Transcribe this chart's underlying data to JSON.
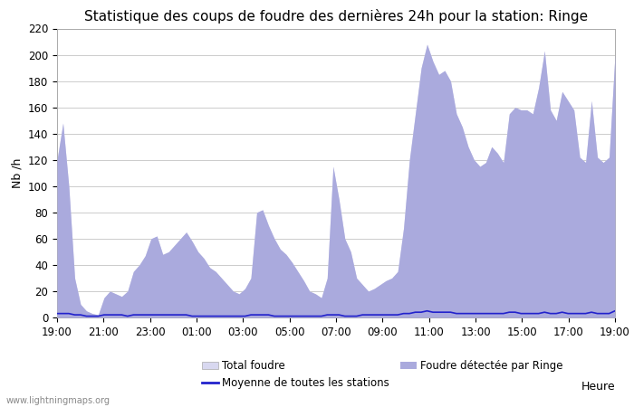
{
  "title": "Statistique des coups de foudre des dernières 24h pour la station: Ringe",
  "xlabel": "Heure",
  "ylabel": "Nb /h",
  "ylim": [
    0,
    220
  ],
  "yticks": [
    0,
    20,
    40,
    60,
    80,
    100,
    120,
    140,
    160,
    180,
    200,
    220
  ],
  "x_labels": [
    "19:00",
    "21:00",
    "23:00",
    "01:00",
    "03:00",
    "05:00",
    "07:00",
    "09:00",
    "11:00",
    "13:00",
    "15:00",
    "17:00",
    "19:00"
  ],
  "background_color": "#ffffff",
  "plot_bg_color": "#ffffff",
  "grid_color": "#cccccc",
  "watermark": "www.lightningmaps.org",
  "total_foudre_color": "#d8d8f0",
  "ringe_foudre_color": "#aaaadd",
  "moyenne_color": "#2222cc",
  "total_foudre": [
    120,
    148,
    100,
    30,
    10,
    5,
    3,
    2,
    15,
    20,
    18,
    16,
    20,
    35,
    40,
    47,
    60,
    62,
    48,
    50,
    55,
    60,
    65,
    58,
    50,
    45,
    38,
    35,
    30,
    25,
    20,
    18,
    22,
    30,
    80,
    82,
    70,
    60,
    52,
    48,
    42,
    35,
    28,
    20,
    18,
    15,
    30,
    115,
    90,
    60,
    50,
    30,
    25,
    20,
    22,
    25,
    28,
    30,
    35,
    68,
    120,
    155,
    190,
    208,
    195,
    185,
    188,
    180,
    155,
    145,
    130,
    120,
    115,
    118,
    130,
    125,
    118,
    155,
    160,
    158,
    158,
    155,
    175,
    203,
    158,
    150,
    172,
    165,
    158,
    122,
    118,
    165,
    122,
    118,
    122,
    200
  ],
  "ringe_foudre": [
    120,
    148,
    100,
    30,
    10,
    5,
    3,
    2,
    15,
    20,
    18,
    16,
    20,
    35,
    40,
    47,
    60,
    62,
    48,
    50,
    55,
    60,
    65,
    58,
    50,
    45,
    38,
    35,
    30,
    25,
    20,
    18,
    22,
    30,
    80,
    82,
    70,
    60,
    52,
    48,
    42,
    35,
    28,
    20,
    18,
    15,
    30,
    115,
    90,
    60,
    50,
    30,
    25,
    20,
    22,
    25,
    28,
    30,
    35,
    68,
    120,
    155,
    190,
    208,
    195,
    185,
    188,
    180,
    155,
    145,
    130,
    120,
    115,
    118,
    130,
    125,
    118,
    155,
    160,
    158,
    158,
    155,
    175,
    203,
    158,
    150,
    172,
    165,
    158,
    122,
    118,
    165,
    122,
    118,
    122,
    200
  ],
  "moyenne": [
    3,
    3,
    3,
    2,
    2,
    1,
    1,
    1,
    2,
    2,
    2,
    2,
    1,
    2,
    2,
    2,
    2,
    2,
    2,
    2,
    2,
    2,
    2,
    1,
    1,
    1,
    1,
    1,
    1,
    1,
    1,
    1,
    1,
    2,
    2,
    2,
    2,
    1,
    1,
    1,
    1,
    1,
    1,
    1,
    1,
    1,
    2,
    2,
    2,
    1,
    1,
    1,
    2,
    2,
    2,
    2,
    2,
    2,
    2,
    3,
    3,
    4,
    4,
    5,
    4,
    4,
    4,
    4,
    3,
    3,
    3,
    3,
    3,
    3,
    3,
    3,
    3,
    4,
    4,
    3,
    3,
    3,
    3,
    4,
    3,
    3,
    4,
    3,
    3,
    3,
    3,
    4,
    3,
    3,
    3,
    5
  ],
  "n_points": 96,
  "title_fontsize": 11,
  "tick_fontsize": 8.5,
  "label_fontsize": 9,
  "legend_fontsize": 8.5
}
